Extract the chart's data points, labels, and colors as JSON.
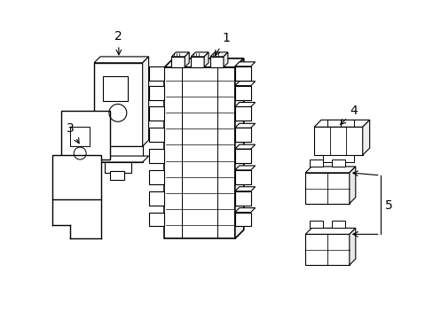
{
  "bg_color": "#ffffff",
  "line_color": "#000000",
  "line_width": 0.8,
  "fig_width": 4.89,
  "fig_height": 3.6,
  "dpi": 100
}
